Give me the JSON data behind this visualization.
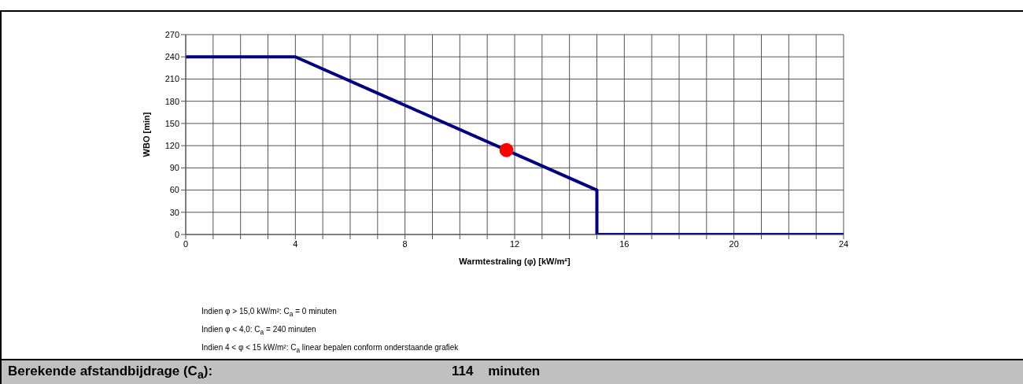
{
  "chart_data": {
    "type": "line",
    "xlabel": "Warmtestraling (φ) [kW/m²]",
    "ylabel": "WBO [min]",
    "xlim": [
      0,
      24
    ],
    "xticks": [
      0,
      {
        "value": 1,
        "label": null
      },
      {
        "value": 2,
        "label": null
      },
      {
        "value": 3,
        "label": null
      },
      4,
      {
        "value": 5,
        "label": null
      },
      {
        "value": 6,
        "label": null
      },
      {
        "value": 7,
        "label": null
      },
      8,
      {
        "value": 9,
        "label": null
      },
      {
        "value": 10,
        "label": null
      },
      {
        "value": 11,
        "label": null
      },
      12,
      {
        "value": 13,
        "label": null
      },
      {
        "value": 14,
        "label": null
      },
      {
        "value": 15,
        "label": null
      },
      16,
      {
        "value": 17,
        "label": null
      },
      {
        "value": 18,
        "label": null
      },
      {
        "value": 19,
        "label": null
      },
      20,
      {
        "value": 21,
        "label": null
      },
      {
        "value": 22,
        "label": null
      },
      {
        "value": 23,
        "label": null
      },
      24
    ],
    "ylim": [
      0,
      270
    ],
    "yticks": [
      0,
      30,
      60,
      90,
      120,
      150,
      180,
      210,
      240,
      270
    ],
    "grid": true,
    "line_style": "solid",
    "series": [
      {
        "color": "#000080",
        "x": [
          0,
          4,
          15,
          15,
          24
        ],
        "values": [
          240,
          240,
          60,
          0,
          0
        ],
        "marker": "none"
      },
      {
        "type": "scatter",
        "color": "#ff0000",
        "x": [
          11.7
        ],
        "values": [
          114
        ],
        "marker": "circle"
      }
    ],
    "annotations": [
      "Indien φ > 15,0 kW/m²: C$_{a}$ = 0 minuten",
      "Indien φ < 4,0: C$_{a}$ = 240 minuten",
      "Indien 4 < φ < 15 kW/m²: C$_{a}$ linear bepalen conform onderstaande grafiek",
      "Berekende afstandbijdrage (C$_{a}$):",
      "114 minuten"
    ]
  }
}
